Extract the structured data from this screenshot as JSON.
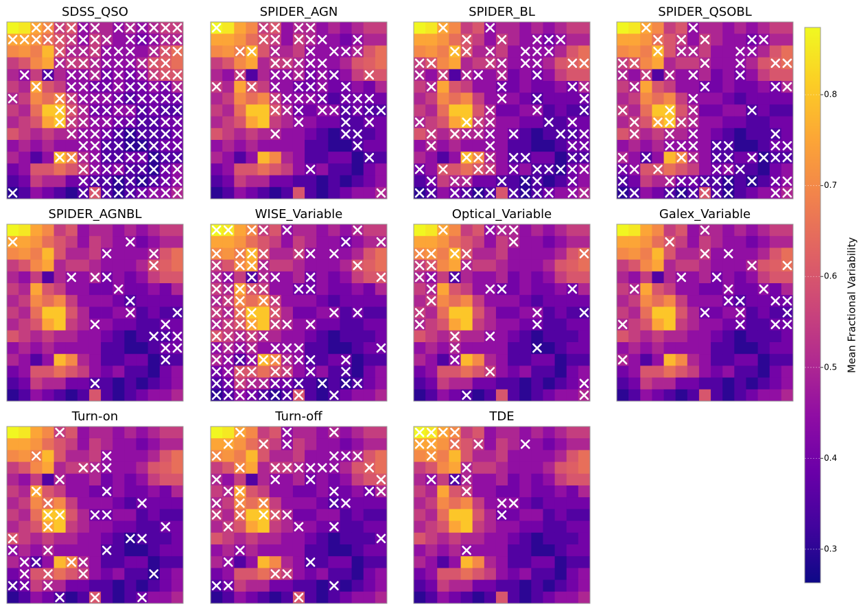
{
  "chart_data": {
    "type": "heatmap",
    "colormap": "plasma",
    "vlim": [
      0.263,
      0.874
    ],
    "colorbar": {
      "label": "Mean Fractional Variability",
      "ticks": [
        0.3,
        0.4,
        0.5,
        0.6,
        0.7,
        0.8
      ]
    },
    "values": [
      [
        0.87,
        0.85,
        0.75,
        0.7,
        0.55,
        0.6,
        0.45,
        0.5,
        0.5,
        0.45,
        0.5,
        0.45,
        0.5,
        0.55,
        0.55
      ],
      [
        0.75,
        0.75,
        0.72,
        0.65,
        0.6,
        0.55,
        0.45,
        0.55,
        0.5,
        0.45,
        0.45,
        0.4,
        0.45,
        0.5,
        0.5
      ],
      [
        0.7,
        0.72,
        0.68,
        0.78,
        0.6,
        0.5,
        0.5,
        0.55,
        0.45,
        0.45,
        0.45,
        0.45,
        0.5,
        0.6,
        0.65
      ],
      [
        0.55,
        0.6,
        0.7,
        0.75,
        0.5,
        0.55,
        0.55,
        0.5,
        0.45,
        0.45,
        0.45,
        0.5,
        0.6,
        0.62,
        0.65
      ],
      [
        0.5,
        0.45,
        0.55,
        0.35,
        0.5,
        0.45,
        0.45,
        0.5,
        0.4,
        0.45,
        0.4,
        0.45,
        0.55,
        0.6,
        0.6
      ],
      [
        0.55,
        0.5,
        0.75,
        0.6,
        0.55,
        0.45,
        0.45,
        0.4,
        0.4,
        0.45,
        0.4,
        0.4,
        0.45,
        0.4,
        0.5
      ],
      [
        0.5,
        0.55,
        0.7,
        0.65,
        0.7,
        0.55,
        0.45,
        0.45,
        0.45,
        0.4,
        0.35,
        0.4,
        0.4,
        0.4,
        0.4
      ],
      [
        0.55,
        0.5,
        0.65,
        0.8,
        0.8,
        0.6,
        0.5,
        0.4,
        0.4,
        0.45,
        0.45,
        0.35,
        0.4,
        0.35,
        0.35
      ],
      [
        0.5,
        0.55,
        0.6,
        0.75,
        0.8,
        0.55,
        0.5,
        0.45,
        0.45,
        0.4,
        0.4,
        0.35,
        0.35,
        0.4,
        0.4
      ],
      [
        0.6,
        0.55,
        0.5,
        0.55,
        0.5,
        0.5,
        0.45,
        0.45,
        0.4,
        0.35,
        0.3,
        0.35,
        0.35,
        0.35,
        0.4
      ],
      [
        0.45,
        0.5,
        0.45,
        0.5,
        0.45,
        0.45,
        0.45,
        0.45,
        0.35,
        0.35,
        0.3,
        0.3,
        0.35,
        0.4,
        0.4
      ],
      [
        0.5,
        0.45,
        0.35,
        0.45,
        0.78,
        0.7,
        0.5,
        0.45,
        0.35,
        0.35,
        0.4,
        0.4,
        0.3,
        0.35,
        0.35
      ],
      [
        0.4,
        0.45,
        0.6,
        0.6,
        0.65,
        0.6,
        0.55,
        0.45,
        0.4,
        0.45,
        0.35,
        0.35,
        0.3,
        0.4,
        0.45
      ],
      [
        0.35,
        0.4,
        0.55,
        0.5,
        0.5,
        0.4,
        0.4,
        0.35,
        0.35,
        0.3,
        0.35,
        0.3,
        0.35,
        0.4,
        0.45
      ],
      [
        0.3,
        0.35,
        0.45,
        0.4,
        0.35,
        0.3,
        0.35,
        0.6,
        0.35,
        0.3,
        0.35,
        0.4,
        0.45,
        0.45,
        0.5
      ]
    ],
    "panels": [
      {
        "title": "SDSS_QSO",
        "crosses": [
          [
            2,
            3,
            4,
            5,
            6,
            7,
            9,
            10,
            11,
            12,
            13,
            14
          ],
          [
            0,
            1,
            2,
            3,
            4,
            5,
            6,
            7,
            8,
            10,
            11,
            12,
            13,
            14
          ],
          [
            4,
            5,
            6,
            7,
            8,
            9,
            10,
            12,
            13,
            14
          ],
          [
            4,
            5,
            6,
            7,
            8,
            9,
            10,
            11,
            12,
            13
          ],
          [
            1,
            3,
            5,
            6,
            7,
            8,
            9,
            10,
            11,
            12,
            13,
            14
          ],
          [
            2,
            5,
            6,
            7,
            8,
            9,
            10,
            11,
            12,
            13,
            14
          ],
          [
            0,
            4,
            5,
            6,
            7,
            8,
            9,
            10,
            11,
            12,
            13,
            14
          ],
          [
            4,
            5,
            6,
            7,
            8,
            9,
            10,
            11,
            12,
            13,
            14
          ],
          [
            4,
            5,
            6,
            7,
            8,
            9,
            10,
            11,
            12,
            13,
            14
          ],
          [
            5,
            6,
            7,
            8,
            9,
            10,
            11,
            12,
            13,
            14
          ],
          [
            6,
            7,
            8,
            9,
            10,
            11,
            12,
            13,
            14
          ],
          [
            4,
            5,
            6,
            7,
            8,
            9,
            10,
            11,
            12,
            13,
            14
          ],
          [
            6,
            7,
            8,
            9,
            10,
            11,
            12,
            13,
            14
          ],
          [
            6,
            7,
            8,
            9,
            10,
            11,
            12,
            13,
            14
          ],
          [
            0,
            6,
            7,
            8,
            9,
            10,
            11,
            12,
            13,
            14
          ]
        ]
      },
      {
        "title": "SPIDER_AGN",
        "crosses": [
          [
            0,
            4,
            5,
            7,
            8
          ],
          [
            4,
            5,
            7,
            8,
            9,
            12
          ],
          [
            2,
            3,
            5,
            8,
            10,
            11,
            12
          ],
          [
            5,
            6,
            7,
            8,
            9
          ],
          [
            2,
            5,
            6,
            7,
            8,
            9,
            10,
            13
          ],
          [
            0,
            3,
            5,
            7,
            8,
            9,
            11
          ],
          [
            5,
            6,
            7,
            8,
            9,
            11,
            12,
            13
          ],
          [
            5,
            6,
            7,
            9,
            10,
            11,
            12,
            13,
            14
          ],
          [
            7,
            11,
            13
          ],
          [
            5,
            11,
            12
          ],
          [
            12
          ],
          [
            13
          ],
          [
            8
          ],
          [],
          [
            14
          ]
        ]
      },
      {
        "title": "SPIDER_BL",
        "crosses": [
          [
            2,
            6
          ],
          [
            4,
            7,
            10,
            11,
            12
          ],
          [
            3,
            4,
            6,
            9,
            10,
            11
          ],
          [
            0,
            1,
            6,
            7,
            9,
            10,
            13,
            14
          ],
          [
            0,
            2,
            4,
            5,
            7,
            10
          ],
          [
            1,
            7,
            13,
            14
          ],
          [
            7,
            10,
            14
          ],
          [
            6,
            10,
            14
          ],
          [
            0,
            4,
            5,
            6,
            11,
            13
          ],
          [
            1,
            3,
            4,
            5,
            6,
            8,
            12,
            13,
            14
          ],
          [
            1,
            6,
            13,
            14
          ],
          [
            4,
            5,
            6,
            8,
            9,
            13,
            14
          ],
          [
            0,
            2,
            5,
            6,
            8,
            10,
            11,
            12,
            13,
            14
          ],
          [
            1,
            3,
            4,
            7,
            9,
            10,
            13
          ],
          [
            0,
            1,
            3,
            4,
            5,
            6,
            8,
            9,
            10,
            11,
            13,
            14
          ]
        ]
      },
      {
        "title": "SPIDER_QSOBL",
        "crosses": [
          [
            2,
            6
          ],
          [
            3,
            5,
            7,
            11,
            12
          ],
          [
            3,
            5,
            6,
            10,
            11
          ],
          [
            0,
            1,
            7,
            10,
            13,
            14
          ],
          [
            0,
            2,
            4,
            6,
            10
          ],
          [
            1,
            7,
            13,
            14
          ],
          [
            6
          ],
          [
            0,
            4,
            6,
            11
          ],
          [
            1,
            3,
            4,
            5,
            6
          ],
          [
            1,
            4,
            6,
            13
          ],
          [
            4,
            5,
            6,
            8,
            9,
            13,
            14
          ],
          [
            0,
            2,
            5,
            6,
            8,
            9,
            11,
            12,
            13,
            14
          ],
          [
            0,
            1,
            3,
            8,
            9,
            10
          ],
          [
            0,
            4,
            5,
            6,
            7,
            8,
            9,
            11,
            13,
            14
          ],
          [
            0,
            1,
            4,
            5,
            6,
            7,
            8,
            9,
            13,
            14
          ]
        ]
      },
      {
        "title": "SPIDER_AGNBL",
        "crosses": [
          [],
          [
            0,
            10
          ],
          [
            8,
            12
          ],
          [
            12
          ],
          [
            5,
            7,
            8
          ],
          [
            9
          ],
          [
            10
          ],
          [
            10,
            14
          ],
          [
            7,
            13
          ],
          [
            12,
            13,
            14
          ],
          [
            13,
            14
          ],
          [
            13
          ],
          [],
          [
            7
          ],
          []
        ]
      },
      {
        "title": "WISE_Variable",
        "crosses": [
          [
            0,
            1,
            3,
            4,
            6,
            12
          ],
          [
            11,
            14
          ],
          [
            0,
            2,
            3,
            4,
            7,
            8,
            10
          ],
          [
            0,
            2,
            3,
            4,
            12
          ],
          [
            0,
            1,
            3,
            4,
            5,
            8,
            14
          ],
          [
            0,
            1,
            2,
            3,
            4,
            7,
            8
          ],
          [
            0,
            1,
            2,
            4,
            5
          ],
          [
            0,
            1,
            2,
            3,
            5,
            10,
            12
          ],
          [
            0,
            1,
            2,
            3,
            5,
            6,
            8
          ],
          [
            0,
            1,
            2,
            3,
            4
          ],
          [
            0,
            1,
            2,
            3,
            5,
            6,
            7,
            14
          ],
          [
            0,
            1,
            2,
            3,
            4,
            5,
            6,
            7,
            8,
            11
          ],
          [
            0,
            1,
            2,
            3,
            5,
            6,
            8,
            11
          ],
          [
            0,
            1,
            2,
            3,
            4,
            5,
            6,
            7,
            9,
            11,
            12
          ],
          [
            0,
            1,
            2,
            3,
            4,
            5,
            6,
            7,
            10
          ]
        ]
      },
      {
        "title": "Optical_Variable",
        "crosses": [
          [
            2,
            6,
            7,
            8
          ],
          [
            8
          ],
          [
            0,
            1,
            3,
            4,
            14
          ],
          [
            0,
            1,
            4
          ],
          [
            0,
            1,
            3
          ],
          [
            1,
            6,
            7,
            13
          ],
          [
            1
          ],
          [
            0,
            10,
            14
          ],
          [
            0,
            10
          ],
          [
            3,
            6
          ],
          [
            3,
            10
          ],
          [
            3
          ],
          [
            6
          ],
          [
            14
          ],
          [
            4,
            14
          ]
        ]
      },
      {
        "title": "Galex_Variable",
        "crosses": [
          [
            7
          ],
          [
            4
          ],
          [
            7,
            9
          ],
          [
            11,
            14
          ],
          [
            5,
            8
          ],
          [
            1,
            9,
            12
          ],
          [
            9,
            10,
            13,
            14
          ],
          [
            7,
            10,
            14
          ],
          [
            0,
            10,
            13,
            14
          ],
          [],
          [],
          [
            0
          ],
          [],
          [],
          []
        ]
      },
      {
        "title": "Turn-on",
        "crosses": [
          [
            4
          ],
          [],
          [
            2,
            8
          ],
          [
            6,
            7,
            8
          ],
          [
            4
          ],
          [
            2,
            8
          ],
          [
            3,
            11
          ],
          [
            3,
            4,
            7,
            8
          ],
          [
            3,
            13
          ],
          [
            0,
            10,
            11
          ],
          [
            0,
            3,
            8
          ],
          [
            1,
            2,
            5,
            6
          ],
          [
            1,
            3,
            6,
            12
          ],
          [
            0,
            1,
            3
          ],
          [
            4,
            7,
            11
          ]
        ]
      },
      {
        "title": "Turn-off",
        "crosses": [
          [
            2,
            6,
            10
          ],
          [
            1,
            4,
            6
          ],
          [
            0,
            10,
            11,
            12
          ],
          [
            2,
            5,
            6,
            7,
            8,
            9,
            10,
            13
          ],
          [
            0,
            5,
            8,
            14
          ],
          [
            1,
            2,
            10,
            13,
            14
          ],
          [
            0,
            2,
            4,
            10,
            11
          ],
          [
            0,
            2,
            4,
            5,
            6
          ],
          [
            1,
            7,
            10
          ],
          [
            14
          ],
          [
            2
          ],
          [
            1,
            8
          ],
          [
            5,
            6
          ],
          [
            0,
            1,
            10
          ],
          [
            7
          ]
        ]
      },
      {
        "title": "TDE",
        "crosses": [
          [
            0,
            1,
            2,
            3
          ],
          [
            0,
            1,
            3,
            5,
            9
          ],
          [
            1
          ],
          [
            4
          ],
          [
            1,
            3,
            4
          ],
          [
            4
          ],
          [
            7,
            8
          ],
          [
            7
          ],
          [],
          [],
          [
            4
          ],
          [],
          [],
          [],
          []
        ]
      }
    ]
  }
}
